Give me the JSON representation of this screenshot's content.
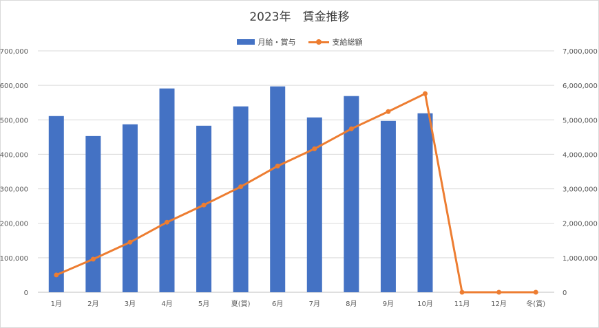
{
  "chart_data": {
    "type": "bar",
    "title": "2023年　賃金推移",
    "categories": [
      "1月",
      "2月",
      "3月",
      "4月",
      "5月",
      "夏(賞)",
      "6月",
      "7月",
      "8月",
      "9月",
      "10月",
      "11月",
      "12月",
      "冬(賞)"
    ],
    "series": [
      {
        "name": "月給・賞与",
        "type": "bar",
        "axis": "left",
        "color": "#4472c4",
        "values": [
          511000,
          453000,
          487000,
          591000,
          483000,
          539000,
          597000,
          507000,
          569000,
          497000,
          519000,
          null,
          null,
          null
        ]
      },
      {
        "name": "支給総額",
        "type": "line",
        "axis": "right",
        "color": "#ed7d31",
        "values": [
          500000,
          960000,
          1450000,
          2030000,
          2530000,
          3060000,
          3660000,
          4160000,
          4740000,
          5240000,
          5760000,
          0,
          0,
          0
        ]
      }
    ],
    "y_left": {
      "min": 0,
      "max": 700000,
      "step": 100000,
      "tick_labels": [
        "0",
        "100,000",
        "200,000",
        "300,000",
        "400,000",
        "500,000",
        "600,000",
        "700,000"
      ]
    },
    "y_right": {
      "min": 0,
      "max": 7000000,
      "step": 1000000,
      "tick_labels": [
        "0",
        "1,000,000",
        "2,000,000",
        "3,000,000",
        "4,000,000",
        "5,000,000",
        "6,000,000",
        "7,000,000"
      ]
    },
    "grid": true,
    "legend_position": "top"
  }
}
